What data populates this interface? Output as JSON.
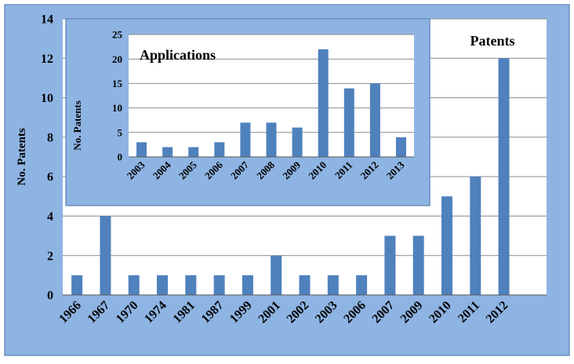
{
  "colors": {
    "frame_background": "#8eb4e3",
    "plot_background": "#ffffff",
    "bar": "#4f81bd",
    "gridline": "#8c8c8c",
    "axis_line": "#595959",
    "text": "#000000"
  },
  "chart_data": [
    {
      "type": "bar",
      "title": "Patents",
      "ylabel": "No. Patents",
      "xlabel": "",
      "ylim": [
        0,
        14
      ],
      "yticks": [
        0,
        2,
        4,
        6,
        8,
        10,
        12,
        14
      ],
      "grid": true,
      "categories": [
        "1966",
        "1967",
        "1970",
        "1974",
        "1981",
        "1987",
        "1999",
        "2001",
        "2002",
        "2003",
        "2006",
        "2007",
        "2009",
        "2010",
        "2011",
        "2012"
      ],
      "values": [
        1,
        4,
        1,
        1,
        1,
        1,
        1,
        2,
        1,
        1,
        1,
        3,
        3,
        5,
        6,
        12
      ]
    },
    {
      "type": "bar",
      "title": "Applications",
      "ylabel": "No. Patents",
      "xlabel": "",
      "ylim": [
        0,
        25
      ],
      "yticks": [
        0,
        5,
        10,
        15,
        20,
        25
      ],
      "grid": true,
      "categories": [
        "2003",
        "2004",
        "2005",
        "2006",
        "2007",
        "2008",
        "2009",
        "2010",
        "2011",
        "2012",
        "2013"
      ],
      "values": [
        3,
        2,
        2,
        3,
        7,
        7,
        6,
        22,
        14,
        15,
        4
      ]
    }
  ]
}
